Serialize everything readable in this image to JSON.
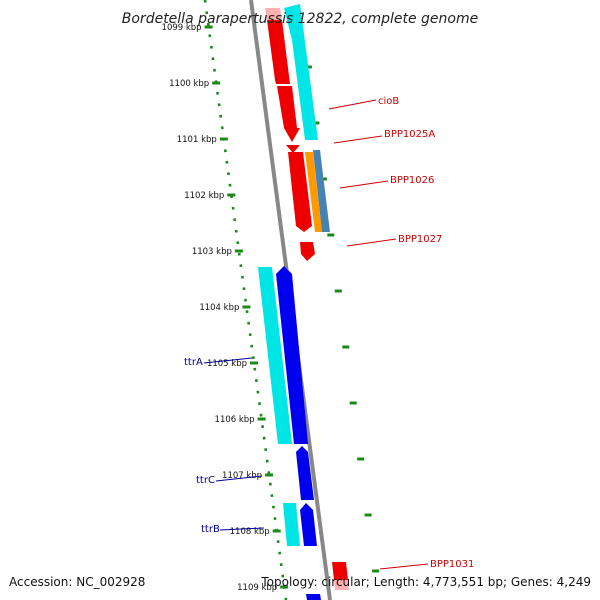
{
  "title": "Bordetella parapertussis 12822, complete genome",
  "footer": {
    "accession": "Accession: NC_002928",
    "topology": "Topology: circular; Length: 4,773,551 bp; Genes: 4,249"
  },
  "colors": {
    "backbone": "#888888",
    "tick_dots": "#1a8a1a",
    "forward_cds": "#ee0000",
    "forward_light": "#ffb0b0",
    "reverse_cds": "#0000ee",
    "rna_cyan": "#00e5e5",
    "orange": "#ff9900",
    "steelblue": "#4682b4",
    "right_label": "#cc0000",
    "left_label": "#000099"
  },
  "kbp_ticks": [
    {
      "label": "1099 kbp"
    },
    {
      "label": "1100 kbp"
    },
    {
      "label": "1101 kbp"
    },
    {
      "label": "1102 kbp"
    },
    {
      "label": "1103 kbp"
    },
    {
      "label": "1104 kbp"
    },
    {
      "label": "1105 kbp"
    },
    {
      "label": "1106 kbp"
    },
    {
      "label": "1107 kbp"
    },
    {
      "label": "1108 kbp"
    },
    {
      "label": "1109 kbp"
    }
  ],
  "right_gene_labels": [
    "cioB",
    "BPP1025A",
    "BPP1026",
    "BPP1027",
    "BPP1031"
  ],
  "left_gene_labels": [
    "ttrA",
    "ttrC",
    "ttrB"
  ]
}
